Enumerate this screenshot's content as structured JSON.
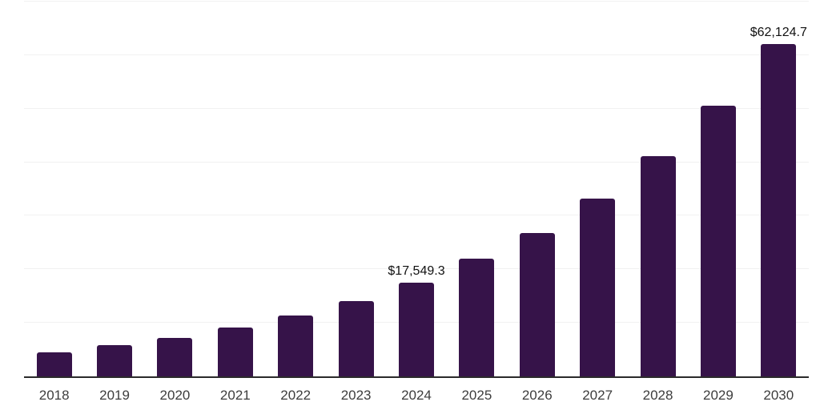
{
  "chart_data": {
    "type": "bar",
    "title": "",
    "xlabel": "",
    "ylabel": "",
    "categories": [
      "2018",
      "2019",
      "2020",
      "2021",
      "2022",
      "2023",
      "2024",
      "2025",
      "2026",
      "2027",
      "2028",
      "2029",
      "2030"
    ],
    "values": [
      4480,
      5830,
      7170,
      9120,
      11360,
      14050,
      17549.3,
      21970,
      26800,
      33180,
      41100,
      50510,
      62124.7
    ],
    "annotations": [
      {
        "category": "2024",
        "text": "$17,549.3"
      },
      {
        "category": "2030",
        "text": "$62,124.7"
      }
    ],
    "ylim": [
      0,
      70000
    ],
    "y_gridline_step": 10000,
    "grid": "horizontal light gridlines, no y-axis tick labels",
    "legend": "none",
    "colors": {
      "bar": "#361349",
      "gridline": "#f1f1f1",
      "axis_line": "#2b2b2b",
      "category_label": "#3d3d3d",
      "data_label": "#111111"
    }
  }
}
